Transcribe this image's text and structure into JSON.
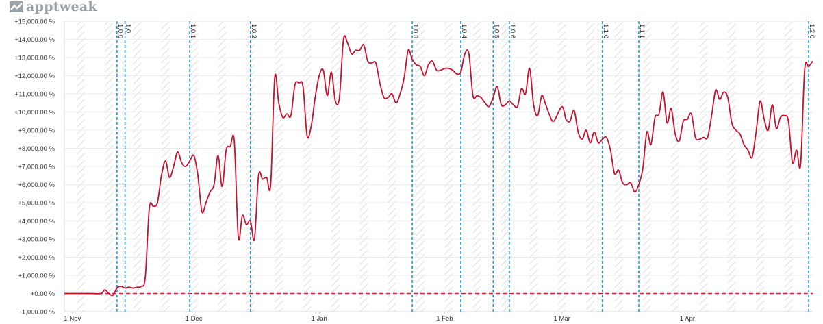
{
  "brand": {
    "name": "apptweak",
    "icon": "chart-trend-icon",
    "color": "#9aa1a8"
  },
  "chart_data": {
    "type": "line",
    "title": "",
    "xlabel": "",
    "ylabel": "",
    "ylim": [
      -1000,
      15000
    ],
    "y_ticks": [
      {
        "value": 15000,
        "label": "+15,000.00 %"
      },
      {
        "value": 14000,
        "label": "+14,000.00 %"
      },
      {
        "value": 13000,
        "label": "+13,000.00 %"
      },
      {
        "value": 12000,
        "label": "+12,000.00 %"
      },
      {
        "value": 11000,
        "label": "+11,000.00 %"
      },
      {
        "value": 10000,
        "label": "+10,000.00 %"
      },
      {
        "value": 9000,
        "label": "+9,000.00 %"
      },
      {
        "value": 8000,
        "label": "+8,000.00 %"
      },
      {
        "value": 7000,
        "label": "+7,000.00 %"
      },
      {
        "value": 6000,
        "label": "+6,000.00 %"
      },
      {
        "value": 5000,
        "label": "+5,000.00 %"
      },
      {
        "value": 4000,
        "label": "+4,000.00 %"
      },
      {
        "value": 3000,
        "label": "+3,000.00 %"
      },
      {
        "value": 2000,
        "label": "+2,000.00 %"
      },
      {
        "value": 1000,
        "label": "+1,000.00 %"
      },
      {
        "value": 0,
        "label": "+0.00 %"
      },
      {
        "value": -1000,
        "label": "-1,000.00 %"
      }
    ],
    "x_ticks": [
      {
        "date": "2019-11-01",
        "label": "1 Nov"
      },
      {
        "date": "2019-12-01",
        "label": "1 Dec"
      },
      {
        "date": "2020-01-01",
        "label": "1 Jan"
      },
      {
        "date": "2020-02-01",
        "label": "1 Feb"
      },
      {
        "date": "2020-03-01",
        "label": "1 Mar"
      },
      {
        "date": "2020-04-01",
        "label": "1 Apr"
      }
    ],
    "xlim": [
      "2019-10-30",
      "2020-05-02"
    ],
    "grid": true,
    "baseline": {
      "value": 0,
      "color": "#d6223a",
      "style": "dashed"
    },
    "series": [
      {
        "color": "#c8102e",
        "points": [
          [
            "2019-10-30",
            0
          ],
          [
            "2019-11-05",
            0
          ],
          [
            "2019-11-08",
            0
          ],
          [
            "2019-11-09",
            200
          ],
          [
            "2019-11-10",
            0
          ],
          [
            "2019-11-11",
            -100
          ],
          [
            "2019-11-12",
            300
          ],
          [
            "2019-11-13",
            400
          ],
          [
            "2019-11-14",
            300
          ],
          [
            "2019-11-15",
            350
          ],
          [
            "2019-11-16",
            300
          ],
          [
            "2019-11-17",
            350
          ],
          [
            "2019-11-18",
            400
          ],
          [
            "2019-11-19",
            900
          ],
          [
            "2019-11-20",
            4700
          ],
          [
            "2019-11-21",
            4800
          ],
          [
            "2019-11-22",
            5000
          ],
          [
            "2019-11-23",
            6500
          ],
          [
            "2019-11-24",
            7300
          ],
          [
            "2019-11-25",
            6400
          ],
          [
            "2019-11-26",
            7000
          ],
          [
            "2019-11-27",
            7800
          ],
          [
            "2019-11-28",
            7200
          ],
          [
            "2019-11-29",
            7000
          ],
          [
            "2019-11-30",
            7300
          ],
          [
            "2019-12-01",
            7600
          ],
          [
            "2019-12-02",
            6500
          ],
          [
            "2019-12-03",
            4500
          ],
          [
            "2019-12-04",
            5000
          ],
          [
            "2019-12-05",
            5600
          ],
          [
            "2019-12-06",
            6000
          ],
          [
            "2019-12-07",
            7600
          ],
          [
            "2019-12-08",
            5900
          ],
          [
            "2019-12-09",
            7900
          ],
          [
            "2019-12-10",
            8100
          ],
          [
            "2019-12-11",
            8400
          ],
          [
            "2019-12-12",
            3100
          ],
          [
            "2019-12-13",
            4300
          ],
          [
            "2019-12-14",
            3800
          ],
          [
            "2019-12-15",
            4000
          ],
          [
            "2019-12-16",
            3000
          ],
          [
            "2019-12-17",
            6500
          ],
          [
            "2019-12-18",
            6300
          ],
          [
            "2019-12-19",
            6400
          ],
          [
            "2019-12-20",
            6000
          ],
          [
            "2019-12-21",
            11900
          ],
          [
            "2019-12-22",
            10500
          ],
          [
            "2019-12-23",
            9700
          ],
          [
            "2019-12-24",
            9900
          ],
          [
            "2019-12-25",
            9800
          ],
          [
            "2019-12-26",
            11500
          ],
          [
            "2019-12-27",
            11600
          ],
          [
            "2019-12-28",
            11400
          ],
          [
            "2019-12-29",
            8700
          ],
          [
            "2019-12-30",
            9200
          ],
          [
            "2019-12-31",
            10800
          ],
          [
            "2020-01-01",
            12000
          ],
          [
            "2020-01-02",
            12300
          ],
          [
            "2020-01-03",
            10900
          ],
          [
            "2020-01-04",
            12200
          ],
          [
            "2020-01-05",
            10600
          ],
          [
            "2020-01-06",
            10800
          ],
          [
            "2020-01-07",
            14000
          ],
          [
            "2020-01-08",
            13800
          ],
          [
            "2020-01-09",
            13200
          ],
          [
            "2020-01-10",
            13400
          ],
          [
            "2020-01-11",
            13400
          ],
          [
            "2020-01-12",
            13700
          ],
          [
            "2020-01-13",
            12800
          ],
          [
            "2020-01-14",
            12700
          ],
          [
            "2020-01-15",
            12700
          ],
          [
            "2020-01-16",
            11600
          ],
          [
            "2020-01-17",
            10800
          ],
          [
            "2020-01-18",
            10800
          ],
          [
            "2020-01-19",
            11000
          ],
          [
            "2020-01-20",
            10500
          ],
          [
            "2020-01-21",
            11000
          ],
          [
            "2020-01-22",
            11900
          ],
          [
            "2020-01-23",
            13400
          ],
          [
            "2020-01-24",
            12900
          ],
          [
            "2020-01-25",
            12600
          ],
          [
            "2020-01-26",
            12500
          ],
          [
            "2020-01-27",
            12000
          ],
          [
            "2020-01-28",
            12600
          ],
          [
            "2020-01-29",
            12800
          ],
          [
            "2020-01-30",
            12300
          ],
          [
            "2020-01-31",
            12300
          ],
          [
            "2020-02-01",
            12400
          ],
          [
            "2020-02-02",
            12400
          ],
          [
            "2020-02-03",
            12300
          ],
          [
            "2020-02-04",
            12100
          ],
          [
            "2020-02-05",
            12200
          ],
          [
            "2020-02-06",
            13200
          ],
          [
            "2020-02-07",
            13200
          ],
          [
            "2020-02-08",
            10900
          ],
          [
            "2020-02-09",
            10900
          ],
          [
            "2020-02-10",
            10800
          ],
          [
            "2020-02-11",
            10500
          ],
          [
            "2020-02-12",
            10300
          ],
          [
            "2020-02-13",
            10800
          ],
          [
            "2020-02-14",
            11400
          ],
          [
            "2020-02-15",
            10400
          ],
          [
            "2020-02-16",
            10400
          ],
          [
            "2020-02-17",
            10600
          ],
          [
            "2020-02-18",
            10400
          ],
          [
            "2020-02-19",
            10300
          ],
          [
            "2020-02-20",
            11300
          ],
          [
            "2020-02-21",
            11000
          ],
          [
            "2020-02-22",
            12400
          ],
          [
            "2020-02-23",
            10400
          ],
          [
            "2020-02-24",
            9800
          ],
          [
            "2020-02-25",
            10900
          ],
          [
            "2020-02-26",
            10400
          ],
          [
            "2020-02-27",
            9800
          ],
          [
            "2020-02-28",
            9500
          ],
          [
            "2020-03-01",
            10300
          ],
          [
            "2020-03-02",
            9600
          ],
          [
            "2020-03-03",
            9500
          ],
          [
            "2020-03-04",
            10100
          ],
          [
            "2020-03-05",
            8900
          ],
          [
            "2020-03-06",
            8500
          ],
          [
            "2020-03-07",
            9000
          ],
          [
            "2020-03-08",
            8300
          ],
          [
            "2020-03-09",
            8900
          ],
          [
            "2020-03-10",
            8300
          ],
          [
            "2020-03-11",
            8500
          ],
          [
            "2020-03-12",
            8600
          ],
          [
            "2020-03-13",
            7900
          ],
          [
            "2020-03-14",
            6600
          ],
          [
            "2020-03-15",
            6800
          ],
          [
            "2020-03-16",
            6100
          ],
          [
            "2020-03-17",
            6000
          ],
          [
            "2020-03-18",
            6100
          ],
          [
            "2020-03-19",
            5600
          ],
          [
            "2020-03-20",
            6000
          ],
          [
            "2020-03-21",
            6900
          ],
          [
            "2020-03-22",
            8900
          ],
          [
            "2020-03-23",
            8200
          ],
          [
            "2020-03-24",
            9700
          ],
          [
            "2020-03-25",
            9900
          ],
          [
            "2020-03-26",
            11100
          ],
          [
            "2020-03-27",
            9400
          ],
          [
            "2020-03-28",
            10200
          ],
          [
            "2020-03-29",
            8800
          ],
          [
            "2020-03-30",
            8400
          ],
          [
            "2020-03-31",
            9500
          ],
          [
            "2020-04-01",
            9600
          ],
          [
            "2020-04-02",
            9900
          ],
          [
            "2020-04-03",
            8600
          ],
          [
            "2020-04-04",
            8500
          ],
          [
            "2020-04-05",
            8600
          ],
          [
            "2020-04-06",
            8600
          ],
          [
            "2020-04-07",
            9800
          ],
          [
            "2020-04-08",
            11200
          ],
          [
            "2020-04-09",
            10700
          ],
          [
            "2020-04-10",
            11100
          ],
          [
            "2020-04-11",
            10800
          ],
          [
            "2020-04-12",
            9400
          ],
          [
            "2020-04-13",
            9000
          ],
          [
            "2020-04-14",
            8800
          ],
          [
            "2020-04-15",
            8200
          ],
          [
            "2020-04-16",
            7900
          ],
          [
            "2020-04-17",
            7500
          ],
          [
            "2020-04-18",
            8900
          ],
          [
            "2020-04-19",
            10600
          ],
          [
            "2020-04-20",
            9600
          ],
          [
            "2020-04-21",
            9000
          ],
          [
            "2020-04-22",
            10400
          ],
          [
            "2020-04-23",
            9100
          ],
          [
            "2020-04-24",
            9700
          ],
          [
            "2020-04-25",
            9800
          ],
          [
            "2020-04-26",
            9500
          ],
          [
            "2020-04-27",
            7200
          ],
          [
            "2020-04-28",
            7900
          ],
          [
            "2020-04-29",
            7100
          ],
          [
            "2020-04-30",
            12300
          ],
          [
            "2020-05-01",
            12500
          ],
          [
            "2020-05-02",
            12800
          ]
        ]
      }
    ],
    "releases": [
      {
        "date": "2019-11-12",
        "label": "1.0.0"
      },
      {
        "date": "2019-11-14",
        "label": "1.0"
      },
      {
        "date": "2019-11-30",
        "label": "1.0.1"
      },
      {
        "date": "2019-12-15",
        "label": "1.0.2"
      },
      {
        "date": "2020-01-24",
        "label": "1.0.3"
      },
      {
        "date": "2020-02-05",
        "label": "1.0.4"
      },
      {
        "date": "2020-02-13",
        "label": "1.0.5"
      },
      {
        "date": "2020-02-17",
        "label": "1.0.6"
      },
      {
        "date": "2020-03-11",
        "label": "1.1.0"
      },
      {
        "date": "2020-03-20",
        "label": "1.1.1"
      },
      {
        "date": "2020-05-01",
        "label": "1.2.0"
      }
    ],
    "colors": {
      "line": "#c8102e",
      "release_line": "#1e9ad6",
      "baseline": "#d6223a",
      "hatch": "#e6e6e6"
    }
  }
}
